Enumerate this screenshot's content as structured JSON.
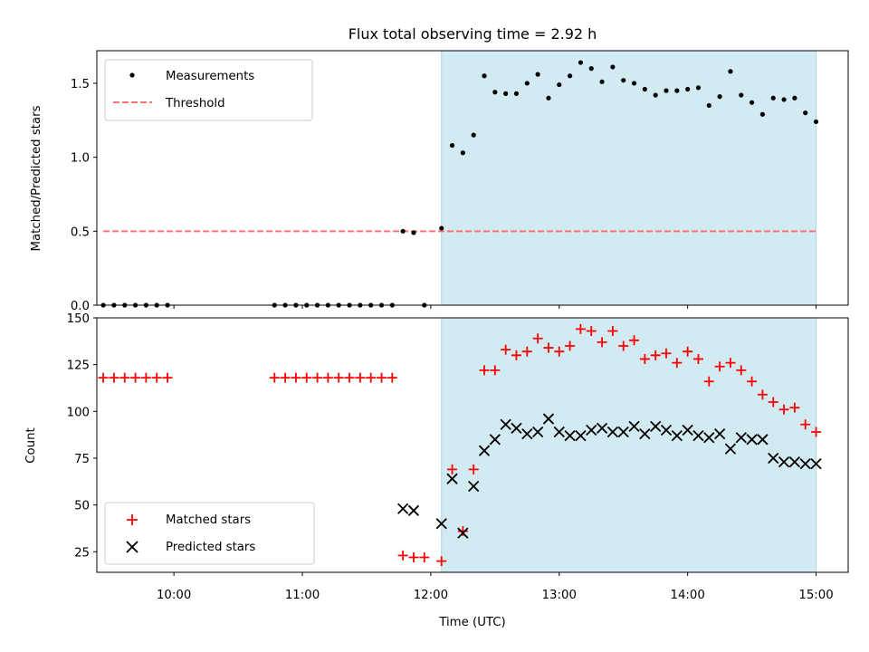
{
  "title": "Flux total observing time = 2.92 h",
  "colors": {
    "threshold": "#ff7070",
    "matched": "#ff0000",
    "predicted": "#000000",
    "span": "#add8e6"
  },
  "chart_data": [
    {
      "type": "scatter",
      "ylabel": "Matched/Predicted stars",
      "ylim": [
        0,
        1.72
      ],
      "yticks": [
        0.0,
        0.5,
        1.0,
        1.5
      ],
      "ytick_labels": [
        "0.0",
        "0.5",
        "1.0",
        "1.5"
      ],
      "xlim": [
        "09:24",
        "15:15"
      ],
      "legend": {
        "position": "top-left",
        "entries": [
          "Measurements",
          "Threshold"
        ]
      },
      "shaded_span": {
        "x": [
          "12:05",
          "15:00"
        ]
      },
      "threshold": {
        "name": "Threshold",
        "y": 0.5,
        "x": [
          "09:27",
          "15:00"
        ]
      },
      "series": [
        {
          "name": "Measurements",
          "marker": "dot",
          "x": [
            "09:27",
            "09:32",
            "09:37",
            "09:42",
            "09:47",
            "09:52",
            "09:57",
            "10:47",
            "10:52",
            "10:57",
            "11:02",
            "11:07",
            "11:12",
            "11:17",
            "11:22",
            "11:27",
            "11:32",
            "11:37",
            "11:42",
            "11:47",
            "11:52",
            "11:57",
            "12:05",
            "12:10",
            "12:15",
            "12:20",
            "12:25",
            "12:30",
            "12:35",
            "12:40",
            "12:45",
            "12:50",
            "12:55",
            "13:00",
            "13:05",
            "13:10",
            "13:15",
            "13:20",
            "13:25",
            "13:30",
            "13:35",
            "13:40",
            "13:45",
            "13:50",
            "13:55",
            "14:00",
            "14:05",
            "14:10",
            "14:15",
            "14:20",
            "14:25",
            "14:30",
            "14:35",
            "14:40",
            "14:45",
            "14:50",
            "14:55",
            "15:00"
          ],
          "y": [
            0,
            0,
            0,
            0,
            0,
            0,
            0,
            0,
            0,
            0,
            0,
            0,
            0,
            0,
            0,
            0,
            0,
            0,
            0,
            0.5,
            0.49,
            0,
            0.52,
            1.08,
            1.03,
            1.15,
            1.55,
            1.44,
            1.43,
            1.43,
            1.5,
            1.56,
            1.4,
            1.49,
            1.55,
            1.64,
            1.6,
            1.51,
            1.61,
            1.52,
            1.5,
            1.46,
            1.42,
            1.45,
            1.45,
            1.46,
            1.47,
            1.35,
            1.41,
            1.58,
            1.42,
            1.37,
            1.29,
            1.4,
            1.39,
            1.4,
            1.3,
            1.24
          ]
        }
      ]
    },
    {
      "type": "scatter",
      "ylabel": "Count",
      "xlabel": "Time (UTC)",
      "ylim": [
        14,
        150
      ],
      "yticks": [
        25,
        50,
        75,
        100,
        125,
        150
      ],
      "ytick_labels": [
        "25",
        "50",
        "75",
        "100",
        "125",
        "150"
      ],
      "xlim": [
        "09:24",
        "15:15"
      ],
      "xticks": [
        "10:00",
        "11:00",
        "12:00",
        "13:00",
        "14:00",
        "15:00"
      ],
      "legend": {
        "position": "bottom-left",
        "entries": [
          "Matched stars",
          "Predicted stars"
        ]
      },
      "shaded_span": {
        "x": [
          "12:05",
          "15:00"
        ]
      },
      "series": [
        {
          "name": "Matched stars",
          "marker": "plus",
          "x": [
            "09:27",
            "09:32",
            "09:37",
            "09:42",
            "09:47",
            "09:52",
            "09:57",
            "10:47",
            "10:52",
            "10:57",
            "11:02",
            "11:07",
            "11:12",
            "11:17",
            "11:22",
            "11:27",
            "11:32",
            "11:37",
            "11:42",
            "11:47",
            "11:52",
            "11:57",
            "12:05",
            "12:10",
            "12:15",
            "12:20",
            "12:25",
            "12:30",
            "12:35",
            "12:40",
            "12:45",
            "12:50",
            "12:55",
            "13:00",
            "13:05",
            "13:10",
            "13:15",
            "13:20",
            "13:25",
            "13:30",
            "13:35",
            "13:40",
            "13:45",
            "13:50",
            "13:55",
            "14:00",
            "14:05",
            "14:10",
            "14:15",
            "14:20",
            "14:25",
            "14:30",
            "14:35",
            "14:40",
            "14:45",
            "14:50",
            "14:55",
            "15:00"
          ],
          "y": [
            118,
            118,
            118,
            118,
            118,
            118,
            118,
            118,
            118,
            118,
            118,
            118,
            118,
            118,
            118,
            118,
            118,
            118,
            118,
            23,
            22,
            22,
            20,
            69,
            36,
            69,
            122,
            122,
            133,
            130,
            132,
            139,
            134,
            132,
            135,
            144,
            143,
            137,
            143,
            135,
            138,
            128,
            130,
            131,
            126,
            132,
            128,
            116,
            124,
            126,
            122,
            116,
            109,
            105,
            101,
            102,
            93,
            89
          ]
        },
        {
          "name": "Predicted stars",
          "marker": "x",
          "x": [
            "11:47",
            "11:52",
            "12:05",
            "12:10",
            "12:15",
            "12:20",
            "12:25",
            "12:30",
            "12:35",
            "12:40",
            "12:45",
            "12:50",
            "12:55",
            "13:00",
            "13:05",
            "13:10",
            "13:15",
            "13:20",
            "13:25",
            "13:30",
            "13:35",
            "13:40",
            "13:45",
            "13:50",
            "13:55",
            "14:00",
            "14:05",
            "14:10",
            "14:15",
            "14:20",
            "14:25",
            "14:30",
            "14:35",
            "14:40",
            "14:45",
            "14:50",
            "14:55",
            "15:00"
          ],
          "y": [
            48,
            47,
            40,
            64,
            35,
            60,
            79,
            85,
            93,
            91,
            88,
            89,
            96,
            89,
            87,
            87,
            90,
            91,
            89,
            89,
            92,
            88,
            92,
            90,
            87,
            90,
            87,
            86,
            88,
            80,
            86,
            85,
            85,
            75,
            73,
            73,
            72,
            72
          ]
        }
      ]
    }
  ]
}
